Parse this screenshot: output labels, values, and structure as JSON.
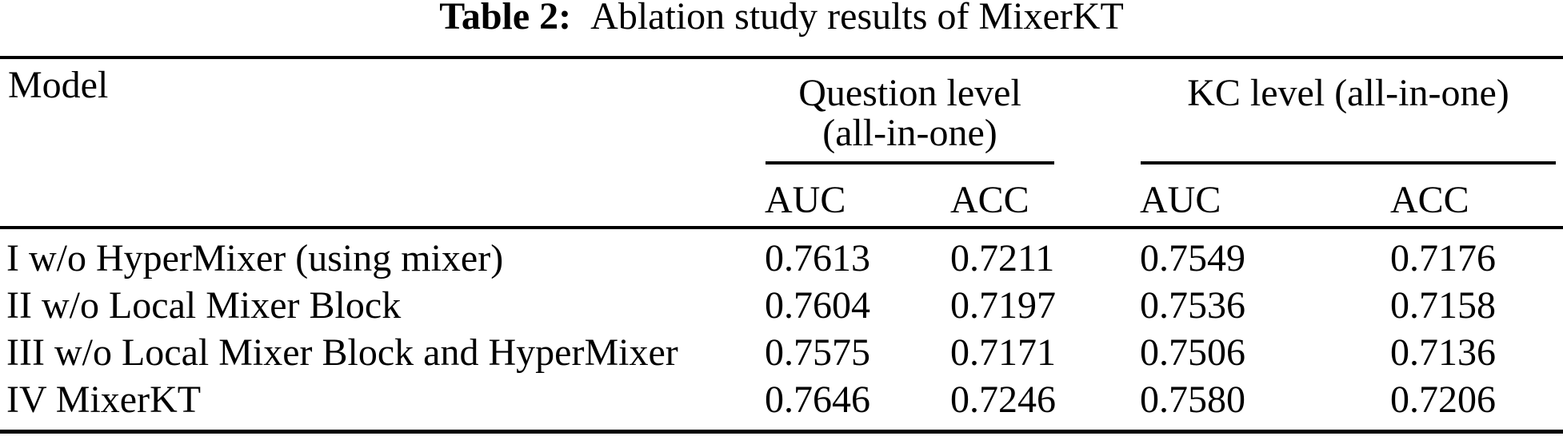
{
  "caption": {
    "label": "Table 2:",
    "text": "Ablation study results of MixerKT"
  },
  "table": {
    "model_header": "Model",
    "groups": [
      {
        "line1": "Question level",
        "line2": "(all-in-one)"
      },
      {
        "line1": "KC level (all-in-one)"
      }
    ],
    "subheaders": [
      "AUC",
      "ACC",
      "AUC",
      "ACC"
    ],
    "rows": [
      {
        "model": "I w/o HyperMixer (using mixer)",
        "values": [
          "0.7613",
          "0.7211",
          "0.7549",
          "0.7176"
        ]
      },
      {
        "model": "II w/o Local Mixer Block",
        "values": [
          "0.7604",
          "0.7197",
          "0.7536",
          "0.7158"
        ]
      },
      {
        "model": "III w/o Local Mixer Block and HyperMixer",
        "values": [
          "0.7575",
          "0.7171",
          "0.7506",
          "0.7136"
        ]
      },
      {
        "model": "IV MixerKT",
        "values": [
          "0.7646",
          "0.7246",
          "0.7580",
          "0.7206"
        ]
      }
    ]
  },
  "colors": {
    "text": "#000000",
    "background": "#ffffff",
    "rule": "#000000"
  },
  "chart_data": {
    "type": "table",
    "title": "Table 2: Ablation study results of MixerKT",
    "column_groups": [
      "Model",
      "Question level (all-in-one)",
      "KC level (all-in-one)"
    ],
    "columns": [
      "Model",
      "Question AUC",
      "Question ACC",
      "KC AUC",
      "KC ACC"
    ],
    "rows": [
      [
        "I w/o HyperMixer (using mixer)",
        0.7613,
        0.7211,
        0.7549,
        0.7176
      ],
      [
        "II w/o Local Mixer Block",
        0.7604,
        0.7197,
        0.7536,
        0.7158
      ],
      [
        "III w/o Local Mixer Block and HyperMixer",
        0.7575,
        0.7171,
        0.7506,
        0.7136
      ],
      [
        "IV MixerKT",
        0.7646,
        0.7246,
        0.758,
        0.7206
      ]
    ]
  }
}
